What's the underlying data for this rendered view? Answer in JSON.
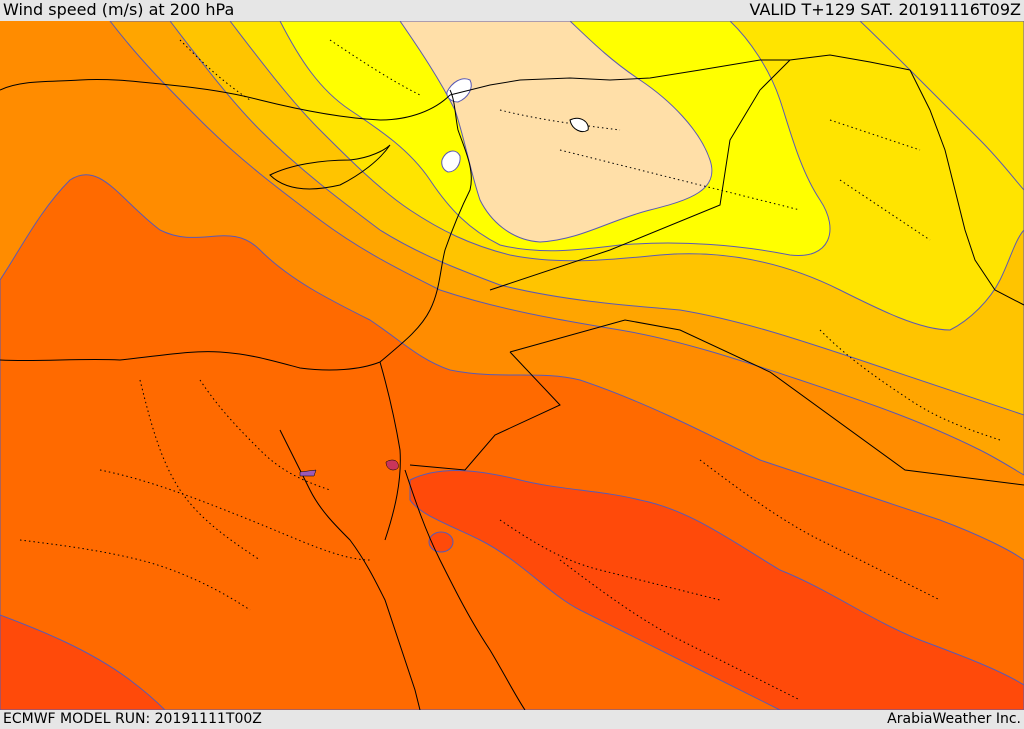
{
  "header": {
    "title": "Wind speed (m/s) at 200 hPa",
    "valid": "VALID T+129 SAT. 20191116T09Z"
  },
  "footer": {
    "model_run": "ECMWF MODEL RUN: 20191111T00Z",
    "credit": "ArabiaWeather Inc."
  },
  "map": {
    "variable": "wind speed",
    "level_hPa": 200,
    "units": "m/s",
    "shading_colors": [
      "#ffffff",
      "#ffdfa8",
      "#ffff00",
      "#ffe400",
      "#ffc400",
      "#ffa500",
      "#ff8c00",
      "#ff6a00",
      "#ff4a0a"
    ],
    "contour_color": "#5a5ab4",
    "boundary_color": "#000000"
  }
}
